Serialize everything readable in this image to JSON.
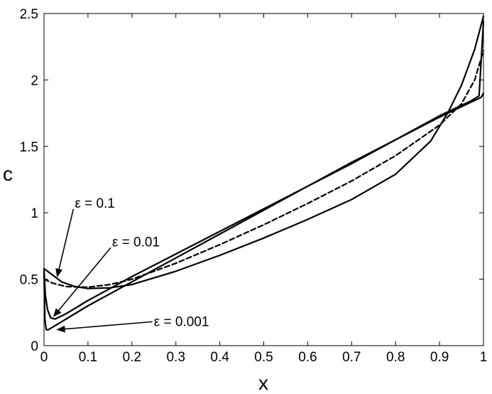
{
  "chart_data": {
    "type": "line",
    "title": "",
    "xlabel": "x",
    "ylabel": "c",
    "xlim": [
      0,
      1
    ],
    "ylim": [
      0,
      2.5
    ],
    "grid": false,
    "legend": "none",
    "xticks": [
      "0",
      "0.1",
      "0.2",
      "0.3",
      "0.4",
      "0.5",
      "0.6",
      "0.7",
      "0.8",
      "0.9",
      "1"
    ],
    "yticks": [
      "0",
      "0.5",
      "1",
      "1.5",
      "2",
      "2.5"
    ],
    "series": [
      {
        "style": "dashed",
        "points": [
          [
            0,
            0.5
          ],
          [
            0.02,
            0.47
          ],
          [
            0.05,
            0.445
          ],
          [
            0.1,
            0.44
          ],
          [
            0.15,
            0.46
          ],
          [
            0.2,
            0.5
          ],
          [
            0.3,
            0.62
          ],
          [
            0.4,
            0.76
          ],
          [
            0.5,
            0.91
          ],
          [
            0.6,
            1.07
          ],
          [
            0.7,
            1.24
          ],
          [
            0.8,
            1.43
          ],
          [
            0.9,
            1.66
          ],
          [
            0.95,
            1.82
          ],
          [
            0.98,
            2.0
          ],
          [
            1.0,
            2.22
          ]
        ]
      },
      {
        "style": "solid",
        "points": [
          [
            0,
            0.58
          ],
          [
            0.02,
            0.53
          ],
          [
            0.04,
            0.48
          ],
          [
            0.07,
            0.445
          ],
          [
            0.1,
            0.43
          ],
          [
            0.15,
            0.435
          ],
          [
            0.2,
            0.46
          ],
          [
            0.3,
            0.56
          ],
          [
            0.4,
            0.68
          ],
          [
            0.5,
            0.81
          ],
          [
            0.6,
            0.95
          ],
          [
            0.7,
            1.1
          ],
          [
            0.8,
            1.29
          ],
          [
            0.88,
            1.54
          ],
          [
            0.92,
            1.76
          ],
          [
            0.95,
            1.96
          ],
          [
            0.98,
            2.23
          ],
          [
            1.0,
            2.48
          ]
        ]
      },
      {
        "style": "solid",
        "points": [
          [
            0,
            0.57
          ],
          [
            0.003,
            0.38
          ],
          [
            0.008,
            0.27
          ],
          [
            0.015,
            0.21
          ],
          [
            0.025,
            0.2
          ],
          [
            0.05,
            0.24
          ],
          [
            0.1,
            0.34
          ],
          [
            0.2,
            0.52
          ],
          [
            0.3,
            0.69
          ],
          [
            0.4,
            0.86
          ],
          [
            0.5,
            1.03
          ],
          [
            0.6,
            1.2
          ],
          [
            0.7,
            1.37
          ],
          [
            0.8,
            1.55
          ],
          [
            0.9,
            1.73
          ],
          [
            0.97,
            1.84
          ],
          [
            0.99,
            1.88
          ],
          [
            1.0,
            2.44
          ]
        ]
      },
      {
        "style": "solid",
        "points": [
          [
            0,
            0.55
          ],
          [
            0.002,
            0.2
          ],
          [
            0.005,
            0.12
          ],
          [
            0.01,
            0.12
          ],
          [
            0.02,
            0.14
          ],
          [
            0.1,
            0.3
          ],
          [
            0.2,
            0.48
          ],
          [
            0.3,
            0.66
          ],
          [
            0.4,
            0.84
          ],
          [
            0.5,
            1.02
          ],
          [
            0.6,
            1.2
          ],
          [
            0.7,
            1.38
          ],
          [
            0.8,
            1.55
          ],
          [
            0.9,
            1.72
          ],
          [
            0.995,
            1.87
          ],
          [
            1.0,
            1.9
          ]
        ]
      }
    ],
    "annotations": [
      {
        "text": "ε = 0.1",
        "text_at": [
          0.07,
          1.07
        ],
        "arrow_to": [
          0.03,
          0.52
        ]
      },
      {
        "text": "ε = 0.01",
        "text_at": [
          0.155,
          0.78
        ],
        "arrow_to": [
          0.022,
          0.22
        ]
      },
      {
        "text": "ε = 0.001",
        "text_at": [
          0.25,
          0.18
        ],
        "arrow_to": [
          0.03,
          0.12
        ]
      }
    ]
  }
}
